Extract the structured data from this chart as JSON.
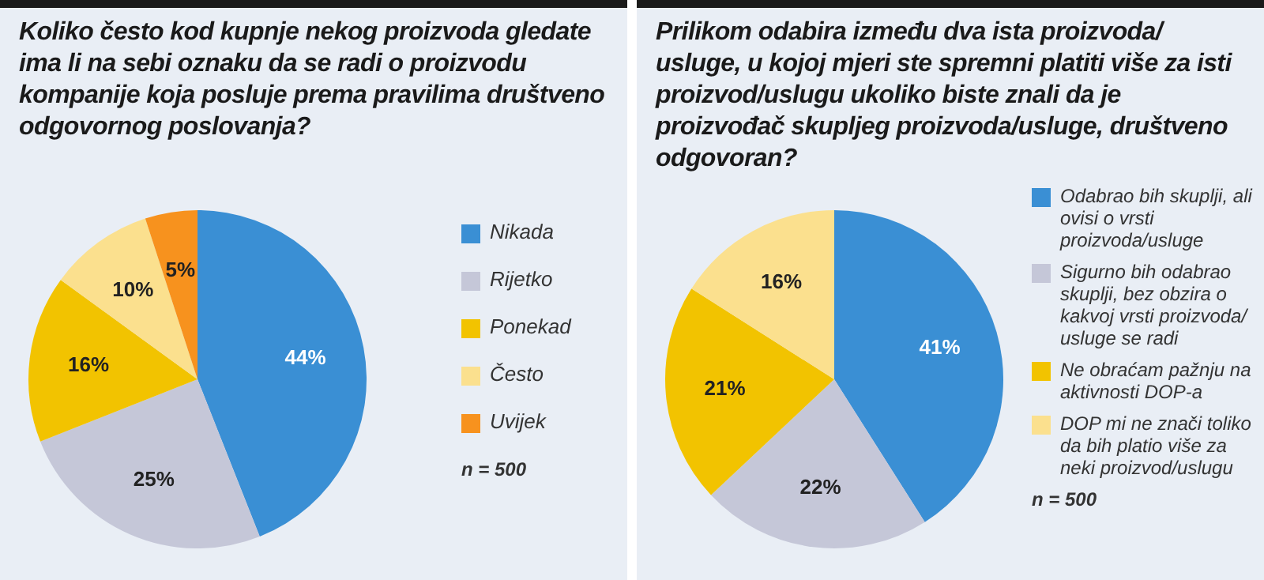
{
  "chart_data": [
    {
      "type": "pie",
      "title": "Koliko često kod kupnje nekog proizvoda gledate ima li na sebi oznaku da se radi o proizvodu kompanije koja posluje prema pravilima društveno odgovornog poslovanja?",
      "categories": [
        "Nikada",
        "Rijetko",
        "Ponekad",
        "Često",
        "Uvijek"
      ],
      "values": [
        44,
        25,
        16,
        10,
        5
      ],
      "value_labels": [
        "44%",
        "25%",
        "16%",
        "10%",
        "5%"
      ],
      "colors": [
        "#3a8fd4",
        "#c5c7d8",
        "#f2c300",
        "#fbe08e",
        "#f7921e"
      ],
      "legend": "right",
      "annotations": [
        "n = 500"
      ]
    },
    {
      "type": "pie",
      "title": "Prilikom odabira između dva ista proizvoda/ usluge, u kojoj mjeri ste spremni platiti više za isti proizvod/uslugu ukoliko biste znali da je proizvođač skupljeg proizvoda/usluge, društveno odgovoran?",
      "categories": [
        "Odabrao bih skuplji, ali ovisi o vrsti proizvoda/usluge",
        "Sigurno bih odabrao skuplji, bez obzira o kakvoj vrsti proizvoda/ usluge se radi",
        "Ne obraćam pažnju na aktivnosti DOP-a",
        "DOP mi ne znači toliko da bih platio više za neki proizvod/uslugu"
      ],
      "values": [
        41,
        22,
        21,
        16
      ],
      "value_labels": [
        "41%",
        "22%",
        "21%",
        "16%"
      ],
      "colors": [
        "#3a8fd4",
        "#c5c7d8",
        "#f2c300",
        "#fbe08e"
      ],
      "legend": "right",
      "annotations": [
        "n = 500"
      ]
    }
  ]
}
